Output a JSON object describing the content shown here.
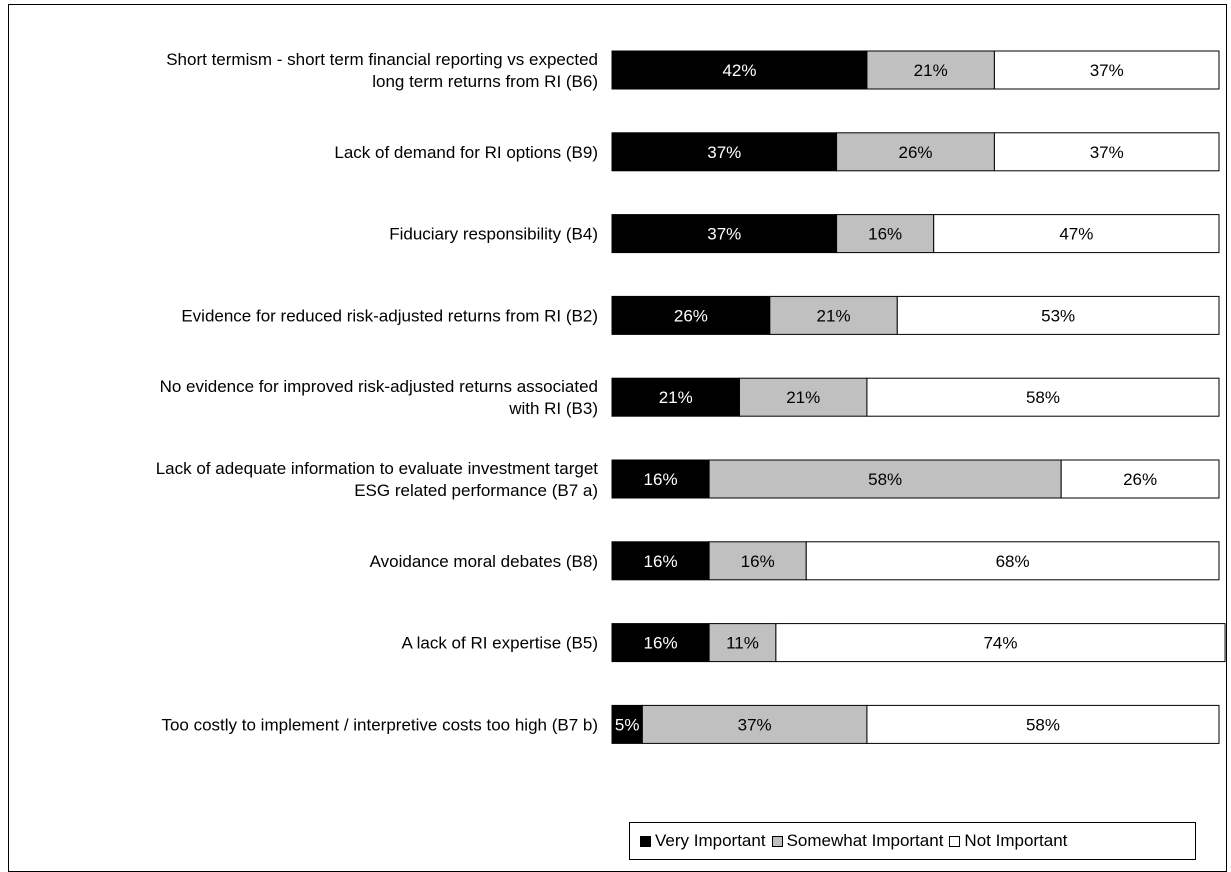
{
  "chart_data": {
    "type": "bar",
    "orientation": "horizontal",
    "stacked": true,
    "value_format": "percent",
    "categories": [
      [
        "Short termism - short term financial reporting vs expected",
        "long term returns from RI (B6)"
      ],
      [
        "Lack of demand for RI options (B9)"
      ],
      [
        "Fiduciary responsibility (B4)"
      ],
      [
        "Evidence for reduced risk-adjusted returns from RI (B2)"
      ],
      [
        "No evidence for improved risk-adjusted returns associated",
        "with RI (B3)"
      ],
      [
        "Lack of adequate information to evaluate investment target",
        "ESG related performance (B7 a)"
      ],
      [
        "Avoidance moral debates (B8)"
      ],
      [
        "A lack of RI expertise (B5)"
      ],
      [
        "Too costly to implement / interpretive costs too high (B7 b)"
      ]
    ],
    "series": [
      {
        "name": "Very Important",
        "color": "#000000",
        "label_color": "#ffffff",
        "values": [
          42,
          37,
          37,
          26,
          21,
          16,
          16,
          16,
          5
        ]
      },
      {
        "name": "Somewhat Important",
        "color": "#c0c0c0",
        "label_color": "#000000",
        "values": [
          21,
          26,
          16,
          21,
          21,
          58,
          16,
          11,
          37
        ]
      },
      {
        "name": "Not Important",
        "color": "#ffffff",
        "label_color": "#000000",
        "values": [
          37,
          37,
          47,
          53,
          58,
          26,
          68,
          74,
          58
        ]
      }
    ],
    "xlim": [
      0,
      100
    ],
    "legend_position": "bottom-right",
    "grid": false
  }
}
